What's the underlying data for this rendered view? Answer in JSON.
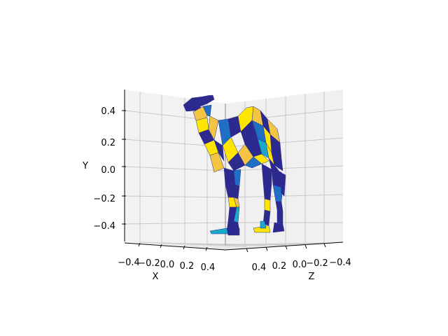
{
  "chart_data": {
    "type": "3d-surface",
    "title": "",
    "axes": {
      "x": {
        "label": "X",
        "ticks": [
          "−0.4",
          "−0.2",
          "0.0",
          "0.2",
          "0.4"
        ]
      },
      "y": {
        "label": "Y",
        "ticks": [
          "−0.4",
          "−0.2",
          "0.0",
          "0.2",
          "0.4"
        ]
      },
      "z": {
        "label": "Z",
        "ticks": [
          "0.4",
          "0.2",
          "0.0",
          "−0.2",
          "−0.4"
        ]
      }
    },
    "grid": true,
    "colormap": [
      "#2d2a8f",
      "#1f6fc4",
      "#19a9c9",
      "#f4c542",
      "#ffe600"
    ],
    "pane_color": "#f2f2f2",
    "grid_color": "#c8c8c8"
  }
}
